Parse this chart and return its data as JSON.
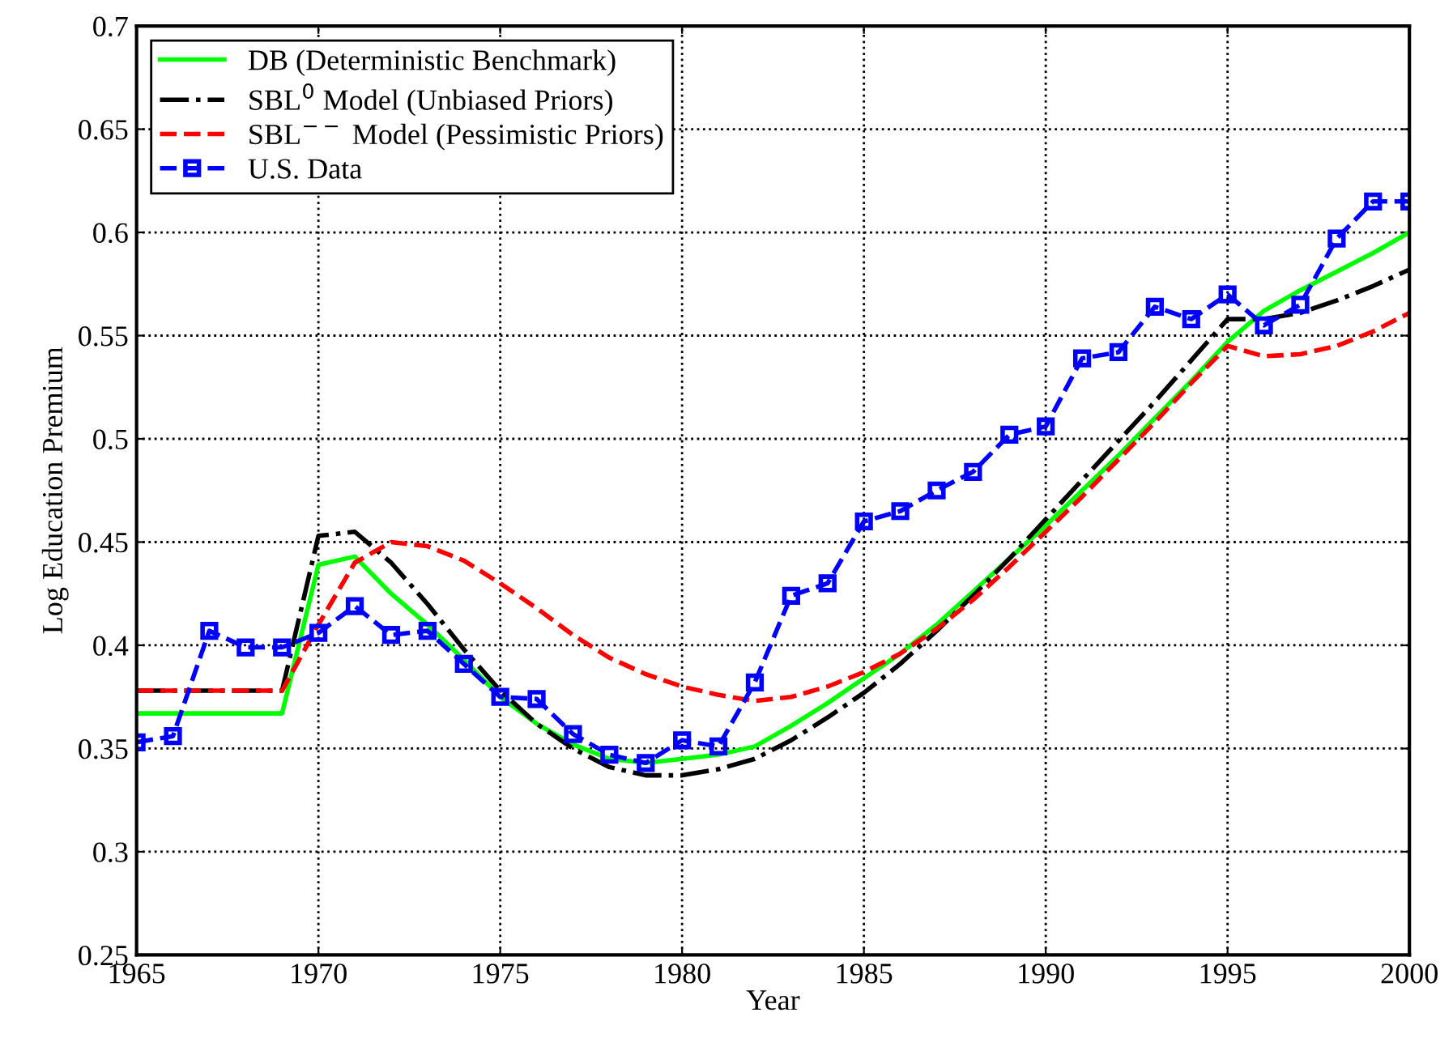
{
  "chart_data": {
    "type": "line",
    "xlabel": "Year",
    "ylabel": "Log Education Premium",
    "x": [
      1965,
      1966,
      1967,
      1968,
      1969,
      1970,
      1971,
      1972,
      1973,
      1974,
      1975,
      1976,
      1977,
      1978,
      1979,
      1980,
      1981,
      1982,
      1983,
      1984,
      1985,
      1986,
      1987,
      1988,
      1989,
      1990,
      1991,
      1992,
      1993,
      1994,
      1995,
      1996,
      1997,
      1998,
      1999,
      2000
    ],
    "series": [
      {
        "name": "DB (Deterministic Benchmark)",
        "color": "#00ff00",
        "line_style": "solid",
        "marker": "none",
        "values": [
          0.367,
          0.367,
          0.367,
          0.367,
          0.367,
          0.439,
          0.443,
          0.425,
          0.41,
          0.393,
          0.375,
          0.362,
          0.352,
          0.345,
          0.343,
          0.345,
          0.347,
          0.351,
          0.361,
          0.372,
          0.384,
          0.396,
          0.41,
          0.426,
          0.442,
          0.458,
          0.475,
          0.492,
          0.51,
          0.528,
          0.547,
          0.562,
          0.572,
          0.581,
          0.59,
          0.6
        ]
      },
      {
        "name": "SBL$^{0}$ Model (Unbiased Priors)",
        "color": "#000000",
        "line_style": "dashdot",
        "marker": "none",
        "values": [
          0.378,
          0.378,
          0.378,
          0.378,
          0.378,
          0.453,
          0.455,
          0.44,
          0.42,
          0.398,
          0.378,
          0.362,
          0.35,
          0.341,
          0.337,
          0.337,
          0.34,
          0.345,
          0.354,
          0.365,
          0.377,
          0.391,
          0.407,
          0.424,
          0.442,
          0.461,
          0.48,
          0.499,
          0.518,
          0.538,
          0.558,
          0.558,
          0.561,
          0.567,
          0.574,
          0.582
        ]
      },
      {
        "name": "SBL$^{−−}$ Model (Pessimistic Priors)",
        "color": "#ff0000",
        "line_style": "dashed",
        "marker": "none",
        "values": [
          0.378,
          0.378,
          0.378,
          0.378,
          0.378,
          0.41,
          0.44,
          0.45,
          0.448,
          0.441,
          0.43,
          0.418,
          0.405,
          0.394,
          0.386,
          0.38,
          0.376,
          0.373,
          0.375,
          0.38,
          0.387,
          0.396,
          0.408,
          0.422,
          0.438,
          0.455,
          0.472,
          0.49,
          0.508,
          0.527,
          0.545,
          0.54,
          0.541,
          0.545,
          0.552,
          0.561
        ]
      },
      {
        "name": "U.S. Data",
        "color": "#0000ff",
        "line_style": "dashed",
        "marker": "square",
        "values": [
          0.353,
          0.356,
          0.407,
          0.399,
          0.399,
          0.406,
          0.419,
          0.405,
          0.407,
          0.391,
          0.375,
          0.374,
          0.357,
          0.347,
          0.343,
          0.354,
          0.351,
          0.382,
          0.424,
          0.43,
          0.46,
          0.465,
          0.475,
          0.484,
          0.502,
          0.506,
          0.539,
          0.542,
          0.564,
          0.558,
          0.57,
          0.555,
          0.565,
          0.597,
          0.615,
          0.615
        ]
      }
    ],
    "xlim": [
      1965,
      2000
    ],
    "xticks": [
      1965,
      1970,
      1975,
      1980,
      1985,
      1990,
      1995,
      2000
    ],
    "ylim": [
      0.25,
      0.7
    ],
    "yticks": [
      0.25,
      0.3,
      0.35,
      0.4,
      0.45,
      0.5,
      0.55,
      0.6,
      0.65,
      0.7
    ],
    "grid": true,
    "legend": "top left"
  }
}
